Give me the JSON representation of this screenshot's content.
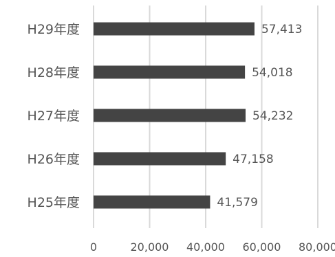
{
  "chart_data": {
    "type": "bar",
    "orientation": "horizontal",
    "categories": [
      "H29年度",
      "H28年度",
      "H27年度",
      "H26年度",
      "H25年度"
    ],
    "values": [
      57413,
      54018,
      54232,
      47158,
      41579
    ],
    "value_labels": [
      "57,413",
      "54,018",
      "54,232",
      "47,158",
      "41,579"
    ],
    "xlim": [
      0,
      80000
    ],
    "xticks": [
      0,
      20000,
      40000,
      60000,
      80000
    ],
    "xtick_labels": [
      "0",
      "20,000",
      "40,000",
      "60,000",
      "80,000"
    ],
    "grid": true,
    "legend": "none",
    "title": "",
    "xlabel": "",
    "ylabel": "",
    "colors": {
      "bar": "#444444",
      "grid": "#d9d9d9",
      "text": "#555555"
    }
  }
}
